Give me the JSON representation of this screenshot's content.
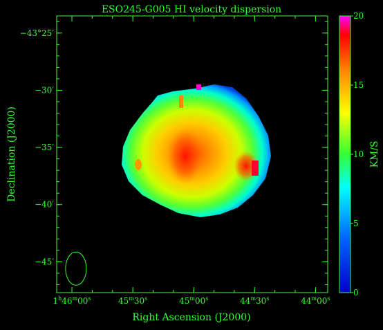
{
  "chart_data": {
    "type": "heatmap",
    "title": "ESO245-G005  HI velocity dispersion",
    "xlabel": "Right Ascension (J2000)",
    "ylabel": "Declination (J2000)",
    "colorbar": {
      "label": "KM/S",
      "range": [
        0,
        20
      ],
      "ticks": [
        "0",
        "5",
        "10",
        "15",
        "20"
      ],
      "tick_values": [
        0,
        5,
        10,
        15,
        20
      ]
    },
    "x_ticks": [
      {
        "h": "1",
        "m": "46",
        "s": "00",
        "label": "1h46m00s"
      },
      {
        "h": "",
        "m": "45",
        "s": "30",
        "label": "45m30s"
      },
      {
        "h": "",
        "m": "45",
        "s": "00",
        "label": "45m00s"
      },
      {
        "h": "",
        "m": "44",
        "s": "30",
        "label": "44m30s"
      },
      {
        "h": "",
        "m": "44",
        "s": "00",
        "label": "44m00s"
      }
    ],
    "x_tick_values_s": [
      6360,
      6330,
      6300,
      6270,
      6240
    ],
    "x_range_s": [
      6367.5,
      6234
    ],
    "y_ticks": [
      "−43°25′",
      "−30′",
      "−35′",
      "−40′",
      "−45′"
    ],
    "y_tick_values_arcmin": [
      -25,
      -30,
      -35,
      -40,
      -45
    ],
    "y_range_arcmin": [
      -23.5,
      -47.7
    ],
    "colors": {
      "axis": "#33ff33",
      "background": "#000000",
      "colormap": [
        "#0000cc",
        "#0066ff",
        "#00ffff",
        "#33ff33",
        "#ffff00",
        "#ff8800",
        "#ff0000",
        "#ff00ff"
      ]
    },
    "beam": {
      "shape": "ellipse",
      "ra_s": 6358,
      "dec_arcmin": -45.6
    }
  }
}
